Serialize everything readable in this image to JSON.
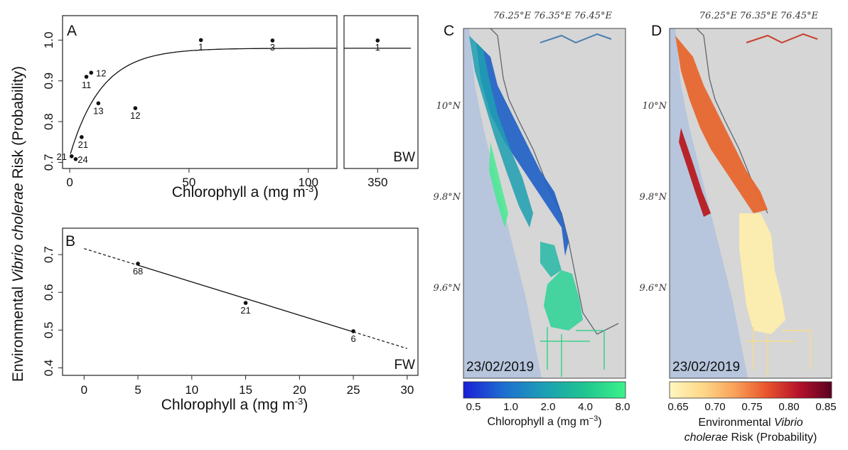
{
  "y_label_prefix": "Environmental ",
  "y_label_species": "Vibrio cholerae",
  "y_label_suffix": " Risk (Probability)",
  "chart_data": [
    {
      "panel": "A",
      "type": "scatter",
      "xlabel": "Chlorophyll a (mg m",
      "xlabel_sup": "-3",
      "xlabel_close": ")",
      "xlim": [
        -3,
        112
      ],
      "ylim": [
        0.685,
        1.06
      ],
      "xticks": [
        0,
        50,
        100
      ],
      "yticks": [
        0.7,
        0.8,
        0.9,
        1.0
      ],
      "points": [
        {
          "x": 0.8,
          "y": 0.715,
          "label": "21"
        },
        {
          "x": 2.5,
          "y": 0.708,
          "label": "24"
        },
        {
          "x": 5,
          "y": 0.762,
          "label": "21"
        },
        {
          "x": 7,
          "y": 0.91,
          "label": "11"
        },
        {
          "x": 9,
          "y": 0.92,
          "label": "12"
        },
        {
          "x": 12,
          "y": 0.845,
          "label": "13"
        },
        {
          "x": 27.5,
          "y": 0.833,
          "label": "12"
        },
        {
          "x": 55,
          "y": 1.0,
          "label": "1"
        },
        {
          "x": 85,
          "y": 0.999,
          "label": "3"
        }
      ],
      "fit": {
        "type": "saturating",
        "asymptote": 0.98,
        "start": 0.715,
        "rate": 0.075
      }
    },
    {
      "panel": "BW",
      "type": "scatter",
      "label": "BW",
      "xlim": [
        335,
        368
      ],
      "ylim": [
        0.685,
        1.06
      ],
      "xticks": [
        350
      ],
      "points": [
        {
          "x": 350,
          "y": 0.999,
          "label": "1"
        }
      ],
      "fit_level": 0.98
    },
    {
      "panel": "B",
      "type": "scatter",
      "label": "FW",
      "xlabel": "Chlorophyll a (mg m",
      "xlabel_sup": "-3",
      "xlabel_close": ")",
      "xlim": [
        -2,
        31
      ],
      "ylim": [
        0.38,
        0.77
      ],
      "xticks": [
        0,
        5,
        10,
        15,
        20,
        25,
        30
      ],
      "yticks": [
        0.4,
        0.5,
        0.6,
        0.7
      ],
      "points": [
        {
          "x": 5,
          "y": 0.676,
          "label": "68"
        },
        {
          "x": 15,
          "y": 0.572,
          "label": "21"
        },
        {
          "x": 25,
          "y": 0.497,
          "label": "6"
        }
      ],
      "fit": {
        "type": "linear",
        "intercept": 0.716,
        "slope": -0.00883,
        "solid_range": [
          5,
          25
        ]
      }
    },
    {
      "panel": "C",
      "type": "heatmap",
      "date": "23/02/2019",
      "lon_ticks": [
        "76.25°E",
        "76.35°E",
        "76.45°E"
      ],
      "lat_ticks": [
        "10°N",
        "9.8°N",
        "9.6°N"
      ],
      "colorbar": {
        "ticks": [
          "0.5",
          "1.0",
          "2.0",
          "4.0",
          "8.0"
        ],
        "label": "Chlorophyll a (mg m",
        "label_sup": "−3",
        "label_close": ")",
        "colors": [
          "#1a1fd6",
          "#1e6fd0",
          "#1c9fb4",
          "#1fc58f",
          "#3cf28a"
        ]
      }
    },
    {
      "panel": "D",
      "type": "heatmap",
      "date": "23/02/2019",
      "lon_ticks": [
        "76.25°E",
        "76.35°E",
        "76.45°E"
      ],
      "lat_ticks": [
        "10°N",
        "9.8°N",
        "9.6°N"
      ],
      "colorbar": {
        "ticks": [
          "0.65",
          "0.70",
          "0.75",
          "0.80",
          "0.85"
        ],
        "label_prefix": "Environmental ",
        "label_species": "Vibrio",
        "label_line2_species": "cholerae",
        "label_line2_suffix": " Risk (Probability)",
        "colors": [
          "#fff7bf",
          "#fdd98a",
          "#f9a25a",
          "#e9542c",
          "#b5122b",
          "#5a0120"
        ]
      }
    }
  ],
  "colors": {
    "sea": "#b7c6dd",
    "land": "#d6d6d6",
    "river": "#5f6670",
    "chl_low": "#1e5fc6",
    "chl_mid": "#1d9fb0",
    "chl_high": "#40eb8c",
    "risk_high": "#e8672f",
    "risk_mid": "#f08a3e",
    "risk_dark": "#b8242a",
    "risk_low": "#fbecb0"
  }
}
